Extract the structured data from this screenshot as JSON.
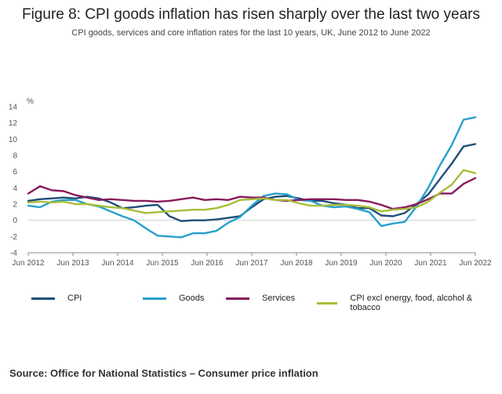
{
  "header": {
    "title": "Figure 8: CPI goods inflation has risen sharply over the last two years",
    "subtitle": "CPI goods, services and core inflation rates for the last 10 years, UK, June 2012 to June 2022"
  },
  "source": "Source: Office for National Statistics – Consumer price inflation",
  "chart_data": {
    "type": "line",
    "ylabel": "%",
    "ylim": [
      -4,
      14
    ],
    "yticks": [
      -4,
      -2,
      0,
      2,
      4,
      6,
      8,
      10,
      12,
      14
    ],
    "grid": false,
    "legend_position": "bottom",
    "x_ticks": [
      "Jun 2012",
      "Jun 2013",
      "Jun 2014",
      "Jun 2015",
      "Jun 2016",
      "Jun 2017",
      "Jun 2018",
      "Jun 2019",
      "Jun 2020",
      "Jun 2021",
      "Jun 2022"
    ],
    "x_period": "Monthly, June 2012 to June 2022 (quarterly points)",
    "series": [
      {
        "name": "CPI",
        "color": "#1f4e79",
        "values": [
          2.4,
          2.6,
          2.7,
          2.8,
          2.7,
          2.9,
          2.7,
          2.2,
          1.5,
          1.6,
          1.8,
          1.9,
          0.5,
          -0.1,
          0.0,
          0.0,
          0.1,
          0.3,
          0.5,
          1.6,
          2.6,
          2.9,
          3.0,
          2.7,
          2.4,
          2.4,
          2.1,
          1.9,
          1.5,
          1.5,
          0.6,
          0.5,
          0.9,
          2.0,
          3.2,
          5.1,
          7.0,
          9.1,
          9.4
        ]
      },
      {
        "name": "Goods",
        "color": "#27a0cc",
        "values": [
          1.8,
          1.6,
          2.3,
          2.5,
          2.5,
          2.0,
          1.7,
          1.1,
          0.5,
          0.0,
          -1.0,
          -1.9,
          -2.0,
          -2.1,
          -1.6,
          -1.6,
          -1.3,
          -0.3,
          0.4,
          1.8,
          3.0,
          3.3,
          3.2,
          2.5,
          2.4,
          1.8,
          1.6,
          1.7,
          1.4,
          1.0,
          -0.7,
          -0.4,
          -0.2,
          1.7,
          4.0,
          6.8,
          9.3,
          12.4,
          12.7
        ]
      },
      {
        "name": "Services",
        "color": "#871a5b",
        "values": [
          3.3,
          4.2,
          3.7,
          3.6,
          3.1,
          2.8,
          2.5,
          2.6,
          2.5,
          2.4,
          2.4,
          2.3,
          2.4,
          2.6,
          2.8,
          2.5,
          2.6,
          2.5,
          2.9,
          2.8,
          2.8,
          2.5,
          2.4,
          2.5,
          2.6,
          2.6,
          2.6,
          2.5,
          2.5,
          2.3,
          1.9,
          1.4,
          1.6,
          2.0,
          2.6,
          3.3,
          3.3,
          4.5,
          5.2
        ]
      },
      {
        "name": "CPI excl energy, food, alcohol & tobacco",
        "color": "#a8bd3a",
        "values": [
          2.2,
          2.3,
          2.2,
          2.3,
          2.0,
          2.0,
          1.8,
          1.6,
          1.5,
          1.2,
          0.9,
          1.0,
          1.1,
          1.2,
          1.3,
          1.3,
          1.5,
          1.9,
          2.5,
          2.6,
          2.7,
          2.5,
          2.5,
          2.1,
          1.8,
          1.8,
          1.9,
          1.9,
          1.8,
          1.6,
          1.1,
          1.3,
          1.4,
          1.6,
          2.3,
          3.4,
          4.4,
          6.2,
          5.8
        ]
      }
    ]
  }
}
